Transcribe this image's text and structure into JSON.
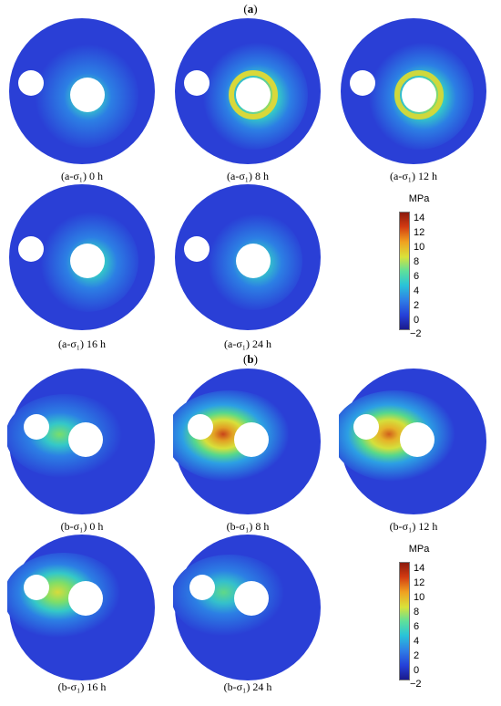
{
  "sections": [
    {
      "label": "a",
      "panels": [
        "(a-σ₁) 0 h",
        "(a-σ₁) 8 h",
        "(a-σ₁) 12 h",
        "(a-σ₁) 16 h",
        "(a-σ₁) 24 h"
      ]
    },
    {
      "label": "b",
      "panels": [
        "(b-σ₁) 0 h",
        "(b-σ₁) 8 h",
        "(b-σ₁) 12 h",
        "(b-σ₁) 16 h",
        "(b-σ₁) 24 h"
      ]
    }
  ],
  "colorbar": {
    "unit": "MPa",
    "ticks": [
      "14",
      "12",
      "10",
      "8",
      "6",
      "4",
      "2",
      "0",
      "−2"
    ]
  }
}
